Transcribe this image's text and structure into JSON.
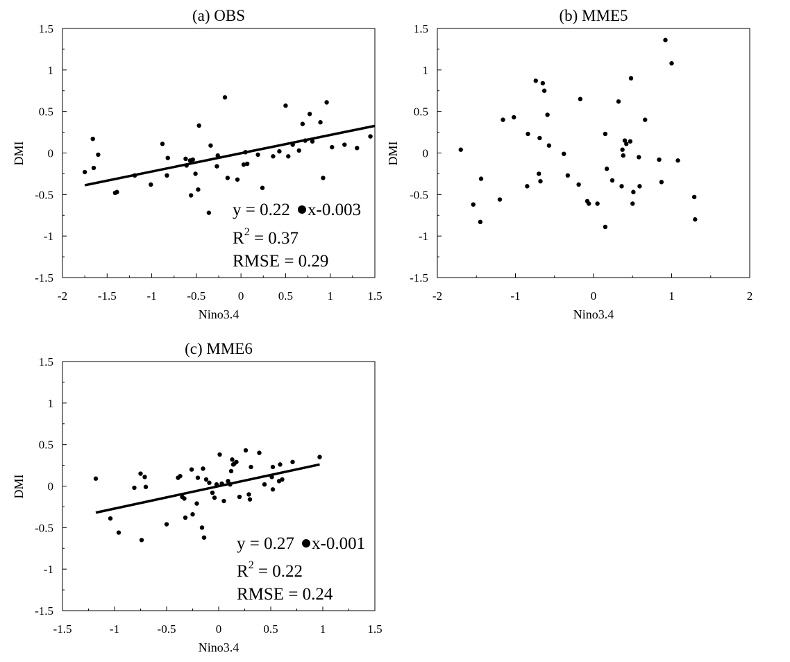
{
  "chart_data": [
    {
      "type": "scatter",
      "title": "(a) OBS",
      "xlabel": "Nino3.4",
      "ylabel": "DMI",
      "xlim": [
        -2,
        1.5
      ],
      "ylim": [
        -1.5,
        1.5
      ],
      "xticks": [
        "-2",
        "-1.5",
        "-1",
        "-0.5",
        "0",
        "0.5",
        "1",
        "1.5"
      ],
      "yticks": [
        "-1.5",
        "-1",
        "-0.5",
        "0",
        "0.5",
        "1",
        "1.5"
      ],
      "x": [
        -1.75,
        -1.66,
        -1.65,
        -1.6,
        -1.41,
        -1.39,
        -1.19,
        -1.01,
        -0.88,
        -0.83,
        -0.82,
        -0.62,
        -0.61,
        -0.57,
        -0.56,
        -0.54,
        -0.51,
        -0.48,
        -0.47,
        -0.36,
        -0.34,
        -0.27,
        -0.26,
        -0.18,
        -0.15,
        -0.04,
        0.03,
        0.05,
        0.07,
        0.19,
        0.24,
        0.36,
        0.43,
        0.5,
        0.53,
        0.58,
        0.65,
        0.69,
        0.72,
        0.77,
        0.8,
        0.89,
        0.92,
        0.96,
        1.02,
        1.16,
        1.3,
        1.45
      ],
      "y": [
        -0.23,
        0.17,
        -0.18,
        -0.02,
        -0.48,
        -0.47,
        -0.27,
        -0.38,
        0.11,
        -0.27,
        -0.06,
        -0.07,
        -0.15,
        -0.09,
        -0.51,
        -0.08,
        -0.25,
        -0.44,
        0.33,
        -0.72,
        0.09,
        -0.16,
        -0.03,
        0.67,
        -0.3,
        -0.32,
        -0.14,
        0.01,
        -0.13,
        -0.02,
        -0.42,
        -0.04,
        0.02,
        0.57,
        -0.04,
        0.1,
        0.03,
        0.35,
        0.15,
        0.47,
        0.14,
        0.37,
        -0.3,
        0.61,
        0.07,
        0.1,
        0.06,
        0.2
      ],
      "fit": {
        "x": [
          -1.75,
          1.5
        ],
        "slope": 0.22,
        "intercept": -0.003
      },
      "annotations": [
        "y = 0.22",
        "x-0.003",
        "R",
        "2",
        " = 0.37",
        "RMSE = 0.29"
      ]
    },
    {
      "type": "scatter",
      "title": "(b) MME5",
      "xlabel": "Nino3.4",
      "ylabel": "DMI",
      "xlim": [
        -2,
        2
      ],
      "ylim": [
        -1.5,
        1.5
      ],
      "xticks": [
        "-2",
        "-1",
        "0",
        "1",
        "2"
      ],
      "yticks": [
        "-1.5",
        "-1",
        "-0.5",
        "0",
        "0.5",
        "1",
        "1.5"
      ],
      "x": [
        -1.7,
        -1.54,
        -1.45,
        -1.44,
        -1.2,
        -1.16,
        -1.02,
        -0.85,
        -0.84,
        -0.74,
        -0.7,
        -0.69,
        -0.68,
        -0.65,
        -0.63,
        -0.59,
        -0.57,
        -0.38,
        -0.33,
        -0.19,
        -0.17,
        -0.08,
        -0.06,
        0.05,
        0.15,
        0.15,
        0.17,
        0.24,
        0.32,
        0.36,
        0.37,
        0.38,
        0.4,
        0.42,
        0.47,
        0.48,
        0.5,
        0.51,
        0.58,
        0.59,
        0.66,
        0.84,
        0.87,
        0.92,
        1.0,
        1.08,
        1.29,
        1.3
      ],
      "y": [
        0.04,
        -0.62,
        -0.83,
        -0.31,
        -0.56,
        0.4,
        0.43,
        -0.4,
        0.23,
        0.87,
        -0.25,
        0.18,
        -0.34,
        0.84,
        0.75,
        0.46,
        0.09,
        -0.01,
        -0.27,
        -0.38,
        0.65,
        -0.58,
        -0.61,
        -0.61,
        -0.89,
        0.23,
        -0.19,
        -0.33,
        0.62,
        -0.4,
        0.04,
        -0.03,
        0.15,
        0.11,
        0.14,
        0.9,
        -0.61,
        -0.47,
        -0.05,
        -0.4,
        0.4,
        -0.08,
        -0.35,
        1.36,
        1.08,
        -0.09,
        -0.53,
        -0.8
      ]
    },
    {
      "type": "scatter",
      "title": "(c) MME6",
      "xlabel": "Nino3.4",
      "ylabel": "DMI",
      "xlim": [
        -1.5,
        1.5
      ],
      "ylim": [
        -1.5,
        1.5
      ],
      "xticks": [
        "-1.5",
        "-1",
        "-0.5",
        "0",
        "0.5",
        "1",
        "1.5"
      ],
      "yticks": [
        "-1.5",
        "-1",
        "-0.5",
        "0",
        "0.5",
        "1",
        "1.5"
      ],
      "x": [
        -1.18,
        -1.04,
        -0.96,
        -0.81,
        -0.75,
        -0.74,
        -0.71,
        -0.7,
        -0.5,
        -0.39,
        -0.37,
        -0.35,
        -0.33,
        -0.32,
        -0.26,
        -0.25,
        -0.21,
        -0.2,
        -0.16,
        -0.15,
        -0.14,
        -0.12,
        -0.09,
        -0.06,
        -0.04,
        -0.02,
        0.01,
        0.03,
        0.05,
        0.09,
        0.11,
        0.12,
        0.13,
        0.14,
        0.15,
        0.17,
        0.2,
        0.26,
        0.29,
        0.3,
        0.31,
        0.39,
        0.44,
        0.51,
        0.52,
        0.52,
        0.58,
        0.59,
        0.61,
        0.71,
        0.97
      ],
      "y": [
        0.09,
        -0.39,
        -0.56,
        -0.02,
        0.15,
        -0.65,
        0.11,
        -0.01,
        -0.46,
        0.1,
        0.12,
        -0.13,
        -0.15,
        -0.38,
        0.2,
        -0.34,
        -0.21,
        0.1,
        -0.5,
        0.21,
        -0.62,
        0.08,
        0.04,
        -0.08,
        -0.14,
        0.02,
        0.38,
        0.03,
        -0.18,
        0.06,
        0.02,
        0.18,
        0.32,
        0.26,
        0.27,
        0.29,
        -0.13,
        0.43,
        -0.1,
        -0.16,
        0.23,
        0.4,
        0.02,
        0.11,
        0.23,
        -0.04,
        0.06,
        0.26,
        0.08,
        0.29,
        0.35
      ],
      "fit": {
        "x": [
          -1.18,
          0.97
        ],
        "slope": 0.27,
        "intercept": -0.001
      },
      "annotations": [
        "y = 0.27",
        "x-0.001",
        "R",
        "2",
        " = 0.22",
        "RMSE = 0.24"
      ]
    }
  ]
}
